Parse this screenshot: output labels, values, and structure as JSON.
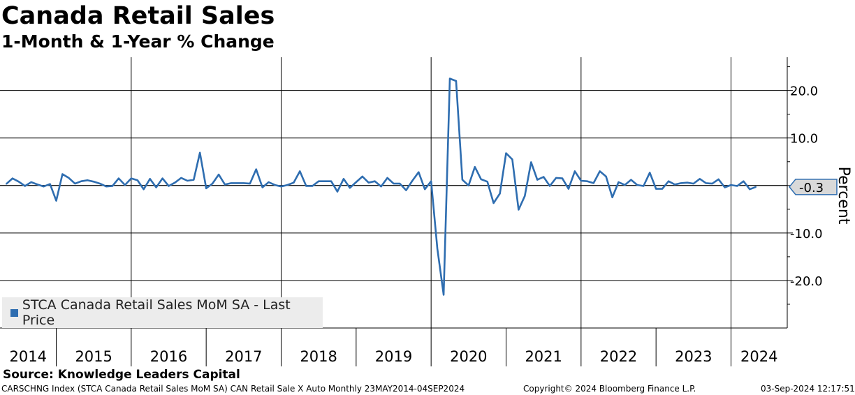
{
  "header": {
    "title": "Canada Retail Sales",
    "subtitle": "1-Month & 1-Year % Change"
  },
  "legend": {
    "label": "STCA Canada Retail Sales MoM SA - Last Price"
  },
  "footer": {
    "source": "Source: Knowledge Leaders Capital",
    "ticker_info": "CARSCHNG Index (STCA Canada Retail Sales MoM SA) CAN Retail Sale X Auto  Monthly 23MAY2014-04SEP2024",
    "copyright": "Copyright© 2024 Bloomberg Finance L.P.",
    "timestamp": "03-Sep-2024 12:17:51"
  },
  "chart_data": {
    "type": "line",
    "title": "Canada Retail Sales",
    "ylabel": "Percent",
    "ylim": [
      -30,
      27
    ],
    "y_ticks": [
      20,
      10,
      0,
      -10,
      -20
    ],
    "y_tick_labels": [
      "20.0",
      "10.0",
      "",
      "-10.0",
      "-20.0"
    ],
    "x_years": [
      "2014",
      "2015",
      "2016",
      "2017",
      "2018",
      "2019",
      "2020",
      "2021",
      "2022",
      "2023",
      "2024"
    ],
    "x_start": "2014-04",
    "x_end": "2024-10",
    "last_value": -0.3,
    "last_value_label": "-0.3",
    "line_color": "#2e6db0",
    "series": [
      {
        "name": "STCA Canada Retail Sales MoM SA - Last Price",
        "start": "2014-05",
        "values": [
          0.3,
          1.5,
          0.8,
          -0.1,
          0.7,
          0.2,
          -0.2,
          0.3,
          -3.2,
          2.4,
          1.6,
          0.4,
          0.9,
          1.1,
          0.8,
          0.4,
          -0.2,
          -0.1,
          1.5,
          0.1,
          1.5,
          1.1,
          -0.8,
          1.4,
          -0.4,
          1.5,
          -0.1,
          0.6,
          1.6,
          1.0,
          1.2,
          6.9,
          -0.6,
          0.4,
          2.3,
          0.2,
          0.5,
          0.5,
          0.5,
          0.4,
          3.4,
          -0.4,
          0.7,
          0.1,
          -0.2,
          0.1,
          0.6,
          3.0,
          -0.1,
          -0.1,
          0.9,
          0.9,
          0.9,
          -1.3,
          1.4,
          -0.5,
          0.7,
          1.9,
          0.6,
          0.9,
          -0.2,
          1.6,
          0.4,
          0.4,
          -1.0,
          1.0,
          2.8,
          -0.8,
          0.9,
          -13.3,
          -23.0,
          22.5,
          22.0,
          1.2,
          0.0,
          3.9,
          1.3,
          0.8,
          -3.7,
          -1.7,
          6.8,
          5.5,
          -5.1,
          -2.2,
          4.9,
          1.2,
          1.8,
          -0.1,
          1.6,
          1.5,
          -0.7,
          3.0,
          1.0,
          0.9,
          0.5,
          3.0,
          1.9,
          -2.5,
          0.7,
          0.1,
          1.2,
          0.1,
          -0.1,
          2.7,
          -0.7,
          -0.7,
          0.9,
          0.2,
          0.5,
          0.6,
          0.4,
          1.4,
          0.5,
          0.4,
          1.3,
          -0.4,
          0.1,
          -0.1,
          0.9,
          -0.8,
          -0.3
        ]
      }
    ]
  }
}
